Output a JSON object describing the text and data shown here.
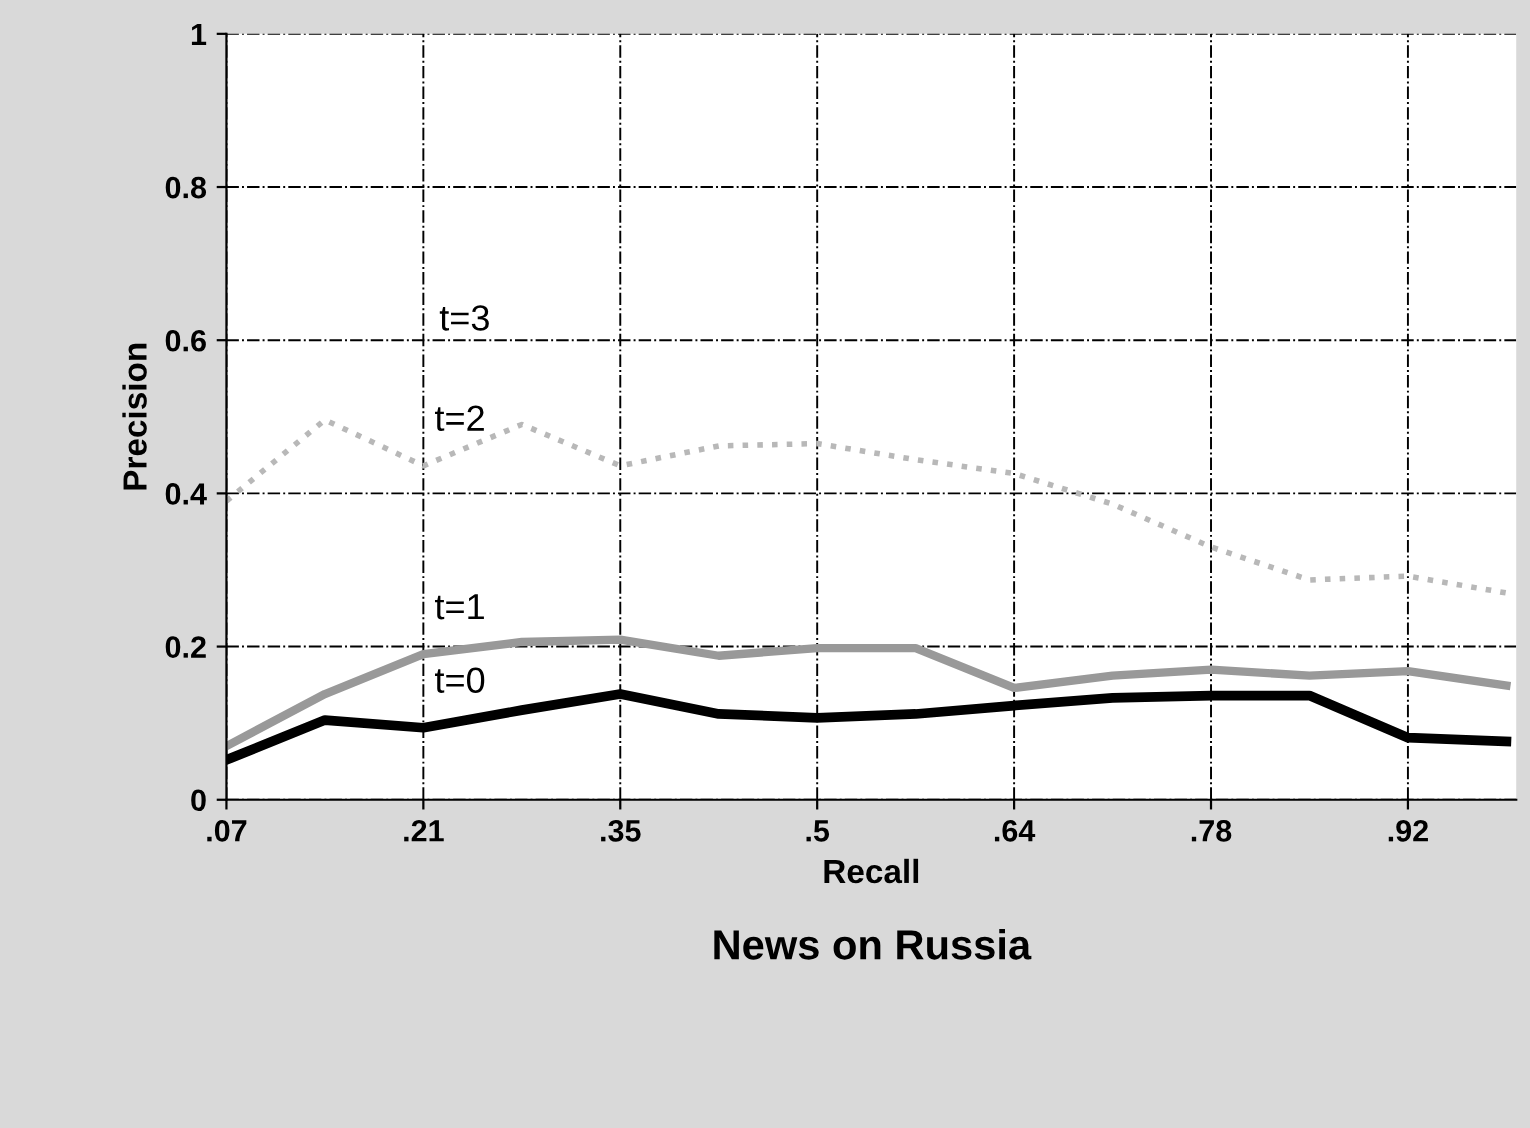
{
  "chart_data": {
    "type": "line",
    "title": "News on Russia",
    "xlabel": "Recall",
    "ylabel": "Precision",
    "categories": [
      ".07",
      null,
      ".21",
      null,
      ".35",
      null,
      ".5",
      null,
      ".64",
      null,
      ".78",
      null,
      ".92",
      null
    ],
    "series": [
      {
        "name": "t=0",
        "color": "#000000",
        "line_style": "solid",
        "values": [
          0.052,
          0.104,
          0.094,
          0.117,
          0.138,
          0.112,
          0.107,
          0.112,
          0.123,
          0.133,
          0.136,
          0.136,
          0.081,
          0.076
        ]
      },
      {
        "name": "t=1",
        "color": "#999999",
        "line_style": "solid",
        "values": [
          0.07,
          0.138,
          0.19,
          0.206,
          0.209,
          0.188,
          0.198,
          0.198,
          0.146,
          0.162,
          0.17,
          0.162,
          0.168,
          0.149
        ]
      },
      {
        "name": "t=2",
        "color": "#b8b8b8",
        "line_style": "dotted",
        "values": [
          0.39,
          0.496,
          0.436,
          0.49,
          0.436,
          0.462,
          0.465,
          0.444,
          0.426,
          0.386,
          0.33,
          0.287,
          0.292,
          0.27
        ]
      }
    ],
    "ylim": [
      0,
      1
    ],
    "yticks": [
      0,
      0.2,
      0.4,
      0.6,
      0.8,
      1
    ],
    "annotations": [
      "t=3"
    ],
    "grid": true,
    "legend": false,
    "marker": "none"
  }
}
